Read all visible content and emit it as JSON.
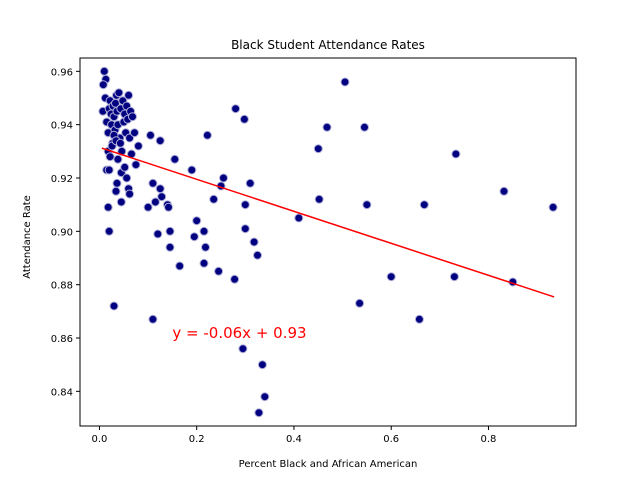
{
  "chart_data": {
    "type": "scatter",
    "title": "Black Student Attendance Rates",
    "xlabel": "Percent Black and African American",
    "ylabel": "Attendance Rate",
    "xlim": [
      -0.04,
      0.98
    ],
    "ylim": [
      0.827,
      0.965
    ],
    "xticks": [
      0.0,
      0.2,
      0.4,
      0.6,
      0.8
    ],
    "xtick_labels": [
      "0.0",
      "0.2",
      "0.4",
      "0.6",
      "0.8"
    ],
    "yticks": [
      0.84,
      0.86,
      0.88,
      0.9,
      0.92,
      0.94,
      0.96
    ],
    "ytick_labels": [
      "0.84",
      "0.86",
      "0.88",
      "0.90",
      "0.92",
      "0.94",
      "0.96"
    ],
    "grid": false,
    "marker_color": "#000080",
    "marker_edge_color": "#b0b0d8",
    "regression": {
      "slope": -0.06,
      "intercept": 0.9315,
      "x_range": [
        0.005,
        0.935
      ],
      "color": "#ff0000",
      "equation_label": "y = -0.06x + 0.93",
      "label_x": 0.15,
      "label_y": 0.86,
      "label_color": "#ff0000"
    },
    "points": [
      [
        0.01,
        0.96
      ],
      [
        0.013,
        0.957
      ],
      [
        0.008,
        0.955
      ],
      [
        0.007,
        0.945
      ],
      [
        0.012,
        0.95
      ],
      [
        0.015,
        0.941
      ],
      [
        0.018,
        0.937
      ],
      [
        0.02,
        0.946
      ],
      [
        0.022,
        0.949
      ],
      [
        0.024,
        0.944
      ],
      [
        0.025,
        0.94
      ],
      [
        0.027,
        0.933
      ],
      [
        0.028,
        0.947
      ],
      [
        0.03,
        0.943
      ],
      [
        0.032,
        0.938
      ],
      [
        0.033,
        0.948
      ],
      [
        0.035,
        0.951
      ],
      [
        0.036,
        0.945
      ],
      [
        0.038,
        0.94
      ],
      [
        0.04,
        0.952
      ],
      [
        0.042,
        0.935
      ],
      [
        0.044,
        0.946
      ],
      [
        0.046,
        0.93
      ],
      [
        0.048,
        0.949
      ],
      [
        0.05,
        0.941
      ],
      [
        0.052,
        0.944
      ],
      [
        0.054,
        0.937
      ],
      [
        0.056,
        0.947
      ],
      [
        0.058,
        0.942
      ],
      [
        0.06,
        0.951
      ],
      [
        0.062,
        0.935
      ],
      [
        0.064,
        0.945
      ],
      [
        0.066,
        0.929
      ],
      [
        0.068,
        0.943
      ],
      [
        0.018,
        0.93
      ],
      [
        0.022,
        0.928
      ],
      [
        0.026,
        0.932
      ],
      [
        0.03,
        0.936
      ],
      [
        0.034,
        0.934
      ],
      [
        0.038,
        0.927
      ],
      [
        0.043,
        0.933
      ],
      [
        0.015,
        0.923
      ],
      [
        0.02,
        0.923
      ],
      [
        0.045,
        0.922
      ],
      [
        0.052,
        0.924
      ],
      [
        0.036,
        0.918
      ],
      [
        0.056,
        0.92
      ],
      [
        0.06,
        0.916
      ],
      [
        0.034,
        0.915
      ],
      [
        0.062,
        0.914
      ],
      [
        0.045,
        0.911
      ],
      [
        0.018,
        0.909
      ],
      [
        0.02,
        0.9
      ],
      [
        0.03,
        0.872
      ],
      [
        0.08,
        0.932
      ],
      [
        0.072,
        0.937
      ],
      [
        0.075,
        0.925
      ],
      [
        0.105,
        0.936
      ],
      [
        0.125,
        0.934
      ],
      [
        0.11,
        0.918
      ],
      [
        0.125,
        0.916
      ],
      [
        0.128,
        0.913
      ],
      [
        0.1,
        0.909
      ],
      [
        0.115,
        0.911
      ],
      [
        0.14,
        0.91
      ],
      [
        0.142,
        0.909
      ],
      [
        0.12,
        0.899
      ],
      [
        0.145,
        0.9
      ],
      [
        0.145,
        0.894
      ],
      [
        0.155,
        0.927
      ],
      [
        0.165,
        0.887
      ],
      [
        0.11,
        0.867
      ],
      [
        0.19,
        0.923
      ],
      [
        0.195,
        0.898
      ],
      [
        0.2,
        0.904
      ],
      [
        0.215,
        0.9
      ],
      [
        0.218,
        0.894
      ],
      [
        0.215,
        0.888
      ],
      [
        0.222,
        0.936
      ],
      [
        0.235,
        0.912
      ],
      [
        0.245,
        0.885
      ],
      [
        0.25,
        0.917
      ],
      [
        0.255,
        0.92
      ],
      [
        0.278,
        0.882
      ],
      [
        0.28,
        0.946
      ],
      [
        0.298,
        0.942
      ],
      [
        0.3,
        0.91
      ],
      [
        0.3,
        0.901
      ],
      [
        0.31,
        0.918
      ],
      [
        0.318,
        0.896
      ],
      [
        0.325,
        0.891
      ],
      [
        0.295,
        0.856
      ],
      [
        0.335,
        0.85
      ],
      [
        0.34,
        0.838
      ],
      [
        0.328,
        0.832
      ],
      [
        0.41,
        0.905
      ],
      [
        0.45,
        0.931
      ],
      [
        0.452,
        0.912
      ],
      [
        0.468,
        0.939
      ],
      [
        0.505,
        0.956
      ],
      [
        0.535,
        0.873
      ],
      [
        0.545,
        0.939
      ],
      [
        0.55,
        0.91
      ],
      [
        0.6,
        0.883
      ],
      [
        0.658,
        0.867
      ],
      [
        0.668,
        0.91
      ],
      [
        0.73,
        0.883
      ],
      [
        0.733,
        0.929
      ],
      [
        0.832,
        0.915
      ],
      [
        0.85,
        0.881
      ],
      [
        0.933,
        0.909
      ]
    ]
  }
}
